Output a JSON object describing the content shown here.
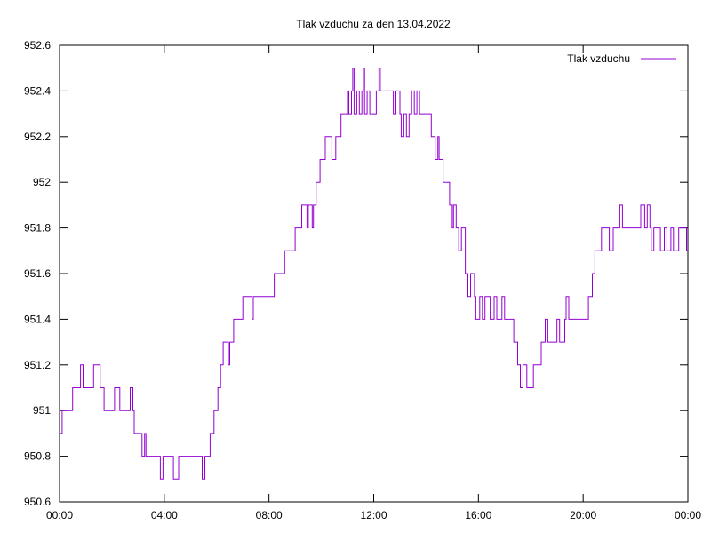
{
  "chart_data": {
    "type": "line",
    "title": "Tlak vzduchu za den 13.04.2022",
    "xlabel": "",
    "ylabel": "",
    "x_range_hours": [
      0,
      24
    ],
    "ylim": [
      950.6,
      952.6
    ],
    "y_ticks": [
      "950.6",
      "950.8",
      "951",
      "951.2",
      "951.4",
      "951.6",
      "951.8",
      "952",
      "952.2",
      "952.4",
      "952.6"
    ],
    "x_ticks": [
      "00:00",
      "04:00",
      "08:00",
      "12:00",
      "16:00",
      "20:00",
      "00:00"
    ],
    "grid": false,
    "legend_position": "top-right",
    "series": [
      {
        "name": "Tlak vzduchu",
        "color": "#9400d3",
        "points": [
          [
            0.0,
            950.9
          ],
          [
            0.1,
            951.0
          ],
          [
            0.5,
            951.0
          ],
          [
            0.5,
            951.1
          ],
          [
            0.8,
            951.1
          ],
          [
            0.8,
            951.2
          ],
          [
            0.9,
            951.1
          ],
          [
            1.2,
            951.1
          ],
          [
            1.3,
            951.2
          ],
          [
            1.5,
            951.2
          ],
          [
            1.55,
            951.1
          ],
          [
            1.7,
            951.1
          ],
          [
            1.7,
            951.0
          ],
          [
            2.1,
            951.0
          ],
          [
            2.1,
            951.1
          ],
          [
            2.3,
            951.0
          ],
          [
            2.65,
            951.0
          ],
          [
            2.7,
            951.1
          ],
          [
            2.8,
            951.0
          ],
          [
            2.85,
            950.9
          ],
          [
            3.1,
            950.9
          ],
          [
            3.15,
            950.8
          ],
          [
            3.25,
            950.9
          ],
          [
            3.3,
            950.8
          ],
          [
            3.8,
            950.8
          ],
          [
            3.85,
            950.7
          ],
          [
            3.95,
            950.8
          ],
          [
            4.3,
            950.8
          ],
          [
            4.35,
            950.7
          ],
          [
            4.5,
            950.7
          ],
          [
            4.55,
            950.8
          ],
          [
            5.4,
            950.8
          ],
          [
            5.45,
            950.7
          ],
          [
            5.55,
            950.8
          ],
          [
            5.7,
            950.8
          ],
          [
            5.75,
            950.9
          ],
          [
            5.9,
            951.0
          ],
          [
            6.0,
            951.0
          ],
          [
            6.05,
            951.1
          ],
          [
            6.15,
            951.2
          ],
          [
            6.25,
            951.3
          ],
          [
            6.4,
            951.3
          ],
          [
            6.45,
            951.2
          ],
          [
            6.5,
            951.3
          ],
          [
            6.6,
            951.3
          ],
          [
            6.65,
            951.4
          ],
          [
            6.9,
            951.4
          ],
          [
            7.0,
            951.5
          ],
          [
            7.3,
            951.5
          ],
          [
            7.35,
            951.4
          ],
          [
            7.4,
            951.5
          ],
          [
            8.1,
            951.5
          ],
          [
            8.2,
            951.6
          ],
          [
            8.5,
            951.6
          ],
          [
            8.6,
            951.7
          ],
          [
            8.9,
            951.7
          ],
          [
            9.0,
            951.8
          ],
          [
            9.15,
            951.8
          ],
          [
            9.25,
            951.9
          ],
          [
            9.4,
            951.9
          ],
          [
            9.45,
            951.8
          ],
          [
            9.5,
            951.9
          ],
          [
            9.6,
            951.9
          ],
          [
            9.65,
            951.8
          ],
          [
            9.7,
            951.9
          ],
          [
            9.8,
            952.0
          ],
          [
            9.95,
            952.1
          ],
          [
            10.1,
            952.1
          ],
          [
            10.15,
            952.2
          ],
          [
            10.35,
            952.2
          ],
          [
            10.4,
            952.1
          ],
          [
            10.5,
            952.1
          ],
          [
            10.55,
            952.2
          ],
          [
            10.65,
            952.2
          ],
          [
            10.75,
            952.3
          ],
          [
            10.95,
            952.3
          ],
          [
            11.0,
            952.4
          ],
          [
            11.05,
            952.3
          ],
          [
            11.15,
            952.4
          ],
          [
            11.2,
            952.5
          ],
          [
            11.25,
            952.3
          ],
          [
            11.35,
            952.4
          ],
          [
            11.45,
            952.3
          ],
          [
            11.55,
            952.4
          ],
          [
            11.6,
            952.5
          ],
          [
            11.65,
            952.3
          ],
          [
            11.75,
            952.4
          ],
          [
            11.85,
            952.3
          ],
          [
            12.0,
            952.3
          ],
          [
            12.1,
            952.4
          ],
          [
            12.2,
            952.5
          ],
          [
            12.25,
            952.4
          ],
          [
            12.7,
            952.4
          ],
          [
            12.75,
            952.3
          ],
          [
            12.85,
            952.4
          ],
          [
            13.0,
            952.3
          ],
          [
            13.05,
            952.2
          ],
          [
            13.15,
            952.3
          ],
          [
            13.25,
            952.2
          ],
          [
            13.35,
            952.3
          ],
          [
            13.45,
            952.4
          ],
          [
            13.55,
            952.3
          ],
          [
            13.65,
            952.4
          ],
          [
            13.75,
            952.3
          ],
          [
            14.1,
            952.3
          ],
          [
            14.2,
            952.2
          ],
          [
            14.35,
            952.1
          ],
          [
            14.45,
            952.2
          ],
          [
            14.5,
            952.1
          ],
          [
            14.65,
            952.0
          ],
          [
            14.8,
            952.0
          ],
          [
            14.9,
            951.9
          ],
          [
            15.0,
            951.8
          ],
          [
            15.05,
            951.9
          ],
          [
            15.15,
            951.8
          ],
          [
            15.25,
            951.7
          ],
          [
            15.35,
            951.8
          ],
          [
            15.5,
            951.6
          ],
          [
            15.6,
            951.5
          ],
          [
            15.7,
            951.6
          ],
          [
            15.85,
            951.5
          ],
          [
            15.9,
            951.4
          ],
          [
            16.05,
            951.5
          ],
          [
            16.15,
            951.4
          ],
          [
            16.25,
            951.5
          ],
          [
            16.45,
            951.4
          ],
          [
            16.6,
            951.5
          ],
          [
            16.7,
            951.4
          ],
          [
            16.9,
            951.5
          ],
          [
            17.0,
            951.4
          ],
          [
            17.2,
            951.4
          ],
          [
            17.35,
            951.3
          ],
          [
            17.5,
            951.2
          ],
          [
            17.6,
            951.1
          ],
          [
            17.7,
            951.2
          ],
          [
            17.85,
            951.1
          ],
          [
            18.0,
            951.1
          ],
          [
            18.1,
            951.2
          ],
          [
            18.3,
            951.2
          ],
          [
            18.4,
            951.3
          ],
          [
            18.55,
            951.4
          ],
          [
            18.65,
            951.3
          ],
          [
            18.9,
            951.3
          ],
          [
            19.0,
            951.4
          ],
          [
            19.1,
            951.3
          ],
          [
            19.3,
            951.4
          ],
          [
            19.35,
            951.5
          ],
          [
            19.45,
            951.4
          ],
          [
            20.1,
            951.4
          ],
          [
            20.2,
            951.5
          ],
          [
            20.35,
            951.6
          ],
          [
            20.45,
            951.7
          ],
          [
            20.6,
            951.7
          ],
          [
            20.7,
            951.8
          ],
          [
            20.9,
            951.8
          ],
          [
            21.0,
            951.7
          ],
          [
            21.15,
            951.8
          ],
          [
            21.3,
            951.8
          ],
          [
            21.4,
            951.9
          ],
          [
            21.5,
            951.8
          ],
          [
            22.1,
            951.8
          ],
          [
            22.2,
            951.9
          ],
          [
            22.3,
            951.9
          ],
          [
            22.35,
            951.8
          ],
          [
            22.45,
            951.9
          ],
          [
            22.55,
            951.8
          ],
          [
            22.6,
            951.7
          ],
          [
            22.7,
            951.8
          ],
          [
            22.9,
            951.8
          ],
          [
            22.95,
            951.7
          ],
          [
            23.1,
            951.8
          ],
          [
            23.2,
            951.7
          ],
          [
            23.35,
            951.8
          ],
          [
            23.45,
            951.7
          ],
          [
            23.6,
            951.7
          ],
          [
            23.65,
            951.8
          ],
          [
            23.9,
            951.8
          ],
          [
            23.95,
            951.7
          ],
          [
            24.0,
            951.7
          ]
        ]
      }
    ]
  }
}
